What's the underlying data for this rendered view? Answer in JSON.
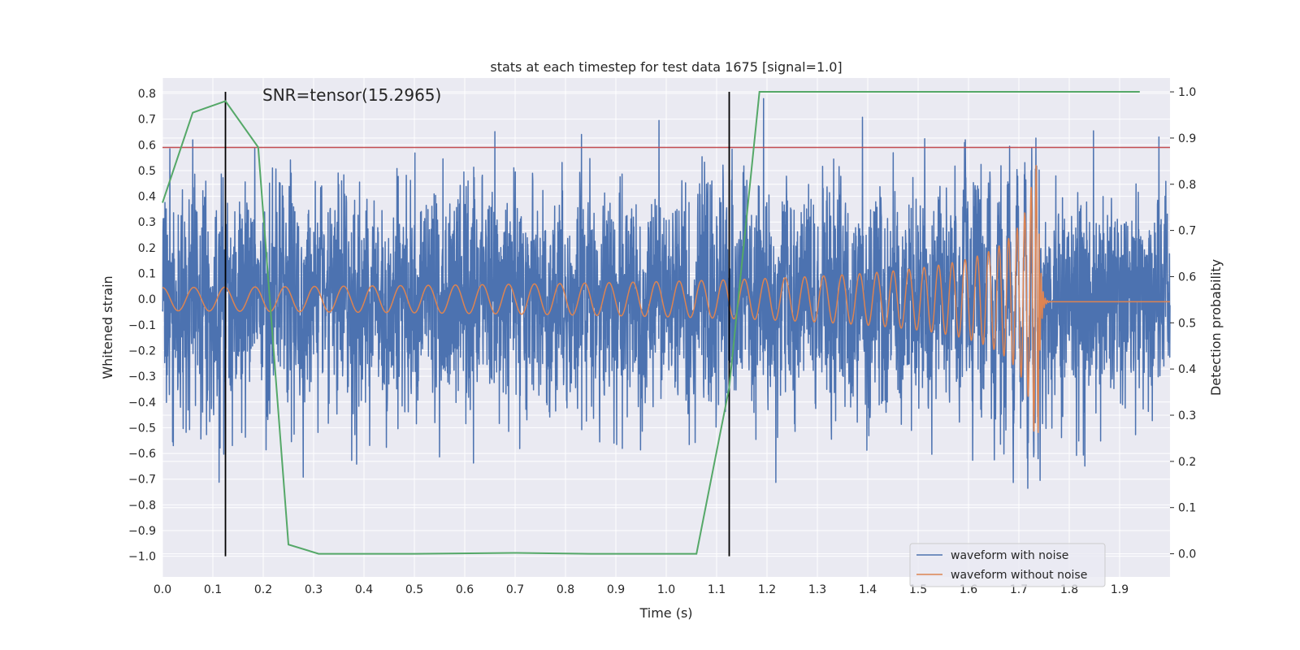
{
  "chart_data": {
    "type": "line",
    "title": "stats at each timestep for test data 1675 [signal=1.0]",
    "xlabel": "Time (s)",
    "ylabel": "Whitened strain",
    "y2label": "Detection probability",
    "annotation": "SNR=tensor(15.2965)",
    "xlim": [
      0.0,
      2.0
    ],
    "ylim": [
      -1.08,
      0.86
    ],
    "y2lim": [
      -0.05,
      1.03
    ],
    "x_ticks": [
      "0.0",
      "0.1",
      "0.2",
      "0.3",
      "0.4",
      "0.5",
      "0.6",
      "0.7",
      "0.8",
      "0.9",
      "1.0",
      "1.1",
      "1.2",
      "1.3",
      "1.4",
      "1.5",
      "1.6",
      "1.7",
      "1.8",
      "1.9"
    ],
    "y_ticks": [
      "0.8",
      "0.7",
      "0.6",
      "0.5",
      "0.4",
      "0.3",
      "0.2",
      "0.1",
      "0.0",
      "-0.1",
      "-0.2",
      "-0.3",
      "-0.4",
      "-0.5",
      "-0.6",
      "-0.7",
      "-0.8",
      "-0.9",
      "-1.0"
    ],
    "y2_ticks": [
      "1.0",
      "0.9",
      "0.8",
      "0.7",
      "0.6",
      "0.5",
      "0.4",
      "0.3",
      "0.2",
      "0.1",
      "0.0"
    ],
    "threshold": 0.59,
    "vlines": [
      0.125,
      1.125
    ],
    "legend": {
      "placement": "lower-right",
      "entries": [
        {
          "name": "waveform with noise",
          "color": "#4c72b0"
        },
        {
          "name": "waveform without noise",
          "color": "#dd8452"
        }
      ]
    },
    "series": [
      {
        "name": "waveform with noise",
        "color": "#4c72b0",
        "axis": "left",
        "noise_amplitude": 0.3,
        "t_start": 0.0,
        "t_end": 2.0
      },
      {
        "name": "waveform without noise",
        "color": "#dd8452",
        "axis": "left",
        "chirp": {
          "t_merger": 1.74,
          "amp_start": 0.045,
          "amp_peak": 0.52,
          "f_start": 16,
          "f_end": 240,
          "ringdown_tail": -0.01
        }
      },
      {
        "name": "detection probability",
        "color": "#55a868",
        "axis": "right",
        "x": [
          0.0,
          0.06,
          0.125,
          0.19,
          0.25,
          0.31,
          0.5,
          0.7,
          0.85,
          1.06,
          1.125,
          1.185,
          1.94
        ],
        "values": [
          0.76,
          0.955,
          0.98,
          0.88,
          0.02,
          0.0,
          0.0,
          0.002,
          0.0,
          0.0,
          0.36,
          1.0,
          1.0
        ]
      }
    ],
    "colors": {
      "background": "#eaeaf2",
      "grid": "#ffffff",
      "threshold": "#c44e52",
      "vline": "#000000"
    }
  }
}
